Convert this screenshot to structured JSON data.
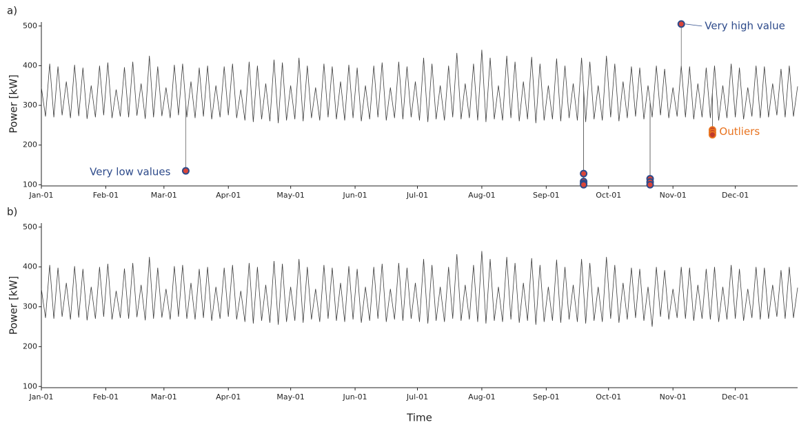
{
  "chart_data": [
    {
      "type": "line",
      "panel_label": "a)",
      "ylabel": "Power [kW]",
      "xlim": [
        0,
        364
      ],
      "ylim": [
        97,
        510
      ],
      "yticks": [
        100,
        200,
        300,
        400,
        500
      ],
      "xticks": [
        {
          "value": 0,
          "label": "Jan-01"
        },
        {
          "value": 31,
          "label": "Feb-01"
        },
        {
          "value": 59,
          "label": "Mar-01"
        },
        {
          "value": 90,
          "label": "Apr-01"
        },
        {
          "value": 120,
          "label": "May-01"
        },
        {
          "value": 151,
          "label": "Jun-01"
        },
        {
          "value": 181,
          "label": "Jul-01"
        },
        {
          "value": 212,
          "label": "Aug-01"
        },
        {
          "value": 243,
          "label": "Sep-01"
        },
        {
          "value": 273,
          "label": "Oct-01"
        },
        {
          "value": 304,
          "label": "Nov-01"
        },
        {
          "value": 334,
          "label": "Dec-01"
        }
      ],
      "x": [
        0,
        2,
        4,
        6,
        8,
        10,
        12,
        14,
        16,
        18,
        20,
        22,
        24,
        26,
        28,
        30,
        32,
        34,
        36,
        38,
        40,
        42,
        44,
        46,
        48,
        50,
        52,
        54,
        56,
        58,
        60,
        62,
        64,
        66,
        68,
        70,
        72,
        74,
        76,
        78,
        80,
        82,
        84,
        86,
        88,
        90,
        92,
        94,
        96,
        98,
        100,
        102,
        104,
        106,
        108,
        110,
        112,
        114,
        116,
        118,
        120,
        122,
        124,
        126,
        128,
        130,
        132,
        134,
        136,
        138,
        140,
        142,
        144,
        146,
        148,
        150,
        152,
        154,
        156,
        158,
        160,
        162,
        164,
        166,
        168,
        170,
        172,
        174,
        176,
        178,
        180,
        182,
        184,
        186,
        188,
        190,
        192,
        194,
        196,
        198,
        200,
        202,
        204,
        206,
        208,
        210,
        212,
        214,
        216,
        218,
        220,
        222,
        224,
        226,
        228,
        230,
        232,
        234,
        236,
        238,
        240,
        242,
        244,
        246,
        248,
        250,
        252,
        254,
        256,
        258,
        260,
        262,
        264,
        266,
        268,
        270,
        272,
        274,
        276,
        278,
        280,
        282,
        284,
        286,
        288,
        290,
        292,
        294,
        296,
        298,
        300,
        302,
        304,
        306,
        308,
        310,
        312,
        314,
        316,
        318,
        320,
        322,
        324,
        326,
        328,
        330,
        332,
        334,
        336,
        338,
        340,
        342,
        344,
        346,
        348,
        350,
        352,
        354,
        356,
        358,
        360,
        362,
        364
      ],
      "series": [
        {
          "color": "#3a3a3a",
          "values": [
            345,
            272,
            405,
            270,
            398,
            275,
            360,
            268,
            402,
            273,
            395,
            266,
            350,
            270,
            400,
            275,
            408,
            268,
            340,
            272,
            396,
            270,
            410,
            274,
            355,
            266,
            425,
            270,
            398,
            273,
            345,
            268,
            402,
            275,
            405,
            270,
            360,
            268,
            395,
            272,
            400,
            265,
            350,
            270,
            398,
            275,
            405,
            268,
            340,
            262,
            410,
            258,
            400,
            265,
            355,
            260,
            415,
            255,
            408,
            262,
            350,
            265,
            420,
            260,
            400,
            268,
            345,
            262,
            405,
            270,
            398,
            265,
            360,
            262,
            402,
            268,
            395,
            260,
            350,
            265,
            400,
            270,
            408,
            262,
            345,
            268,
            410,
            265,
            398,
            270,
            360,
            262,
            420,
            258,
            405,
            265,
            350,
            262,
            400,
            270,
            432,
            265,
            355,
            268,
            405,
            262,
            440,
            258,
            420,
            265,
            350,
            262,
            425,
            268,
            410,
            260,
            360,
            265,
            422,
            255,
            405,
            262,
            350,
            265,
            418,
            260,
            400,
            268,
            355,
            262,
            420,
            258,
            410,
            265,
            350,
            262,
            425,
            270,
            405,
            260,
            360,
            268,
            398,
            272,
            395,
            265,
            350,
            270,
            400,
            275,
            392,
            268,
            345,
            272,
            400,
            270,
            398,
            265,
            355,
            270,
            395,
            268,
            400,
            262,
            350,
            268,
            405,
            270,
            395,
            265,
            345,
            272,
            400,
            268,
            398,
            270,
            355,
            275,
            392,
            270,
            400,
            272,
            348
          ]
        }
      ],
      "highlights": [
        {
          "label": "Very low values",
          "color": "#2d4a8a",
          "fill": "#d9453a",
          "x": [
            69.5,
            261,
            261,
            261,
            261,
            293,
            293,
            293
          ],
          "values": [
            135,
            128,
            108,
            103,
            100,
            115,
            107,
            100
          ]
        },
        {
          "label": "Very high value",
          "color": "#2d4a8a",
          "fill": "#d9453a",
          "x": [
            308
          ],
          "values": [
            505
          ]
        },
        {
          "label": "Outliers",
          "color": "#e8731f",
          "fill": "#c0392b",
          "x": [
            323,
            323,
            323
          ],
          "values": [
            238,
            232,
            226
          ]
        }
      ]
    },
    {
      "type": "line",
      "panel_label": "b)",
      "ylabel": "Power [kW]",
      "xlabel": "Time",
      "xlim": [
        0,
        364
      ],
      "ylim": [
        97,
        510
      ],
      "yticks": [
        100,
        200,
        300,
        400,
        500
      ],
      "xticks": [
        {
          "value": 0,
          "label": "Jan-01"
        },
        {
          "value": 31,
          "label": "Feb-01"
        },
        {
          "value": 59,
          "label": "Mar-01"
        },
        {
          "value": 90,
          "label": "Apr-01"
        },
        {
          "value": 120,
          "label": "May-01"
        },
        {
          "value": 151,
          "label": "Jun-01"
        },
        {
          "value": 181,
          "label": "Jul-01"
        },
        {
          "value": 212,
          "label": "Aug-01"
        },
        {
          "value": 243,
          "label": "Sep-01"
        },
        {
          "value": 273,
          "label": "Oct-01"
        },
        {
          "value": 304,
          "label": "Nov-01"
        },
        {
          "value": 334,
          "label": "Dec-01"
        }
      ],
      "x": [
        0,
        2,
        4,
        6,
        8,
        10,
        12,
        14,
        16,
        18,
        20,
        22,
        24,
        26,
        28,
        30,
        32,
        34,
        36,
        38,
        40,
        42,
        44,
        46,
        48,
        50,
        52,
        54,
        56,
        58,
        60,
        62,
        64,
        66,
        68,
        70,
        72,
        74,
        76,
        78,
        80,
        82,
        84,
        86,
        88,
        90,
        92,
        94,
        96,
        98,
        100,
        102,
        104,
        106,
        108,
        110,
        112,
        114,
        116,
        118,
        120,
        122,
        124,
        126,
        128,
        130,
        132,
        134,
        136,
        138,
        140,
        142,
        144,
        146,
        148,
        150,
        152,
        154,
        156,
        158,
        160,
        162,
        164,
        166,
        168,
        170,
        172,
        174,
        176,
        178,
        180,
        182,
        184,
        186,
        188,
        190,
        192,
        194,
        196,
        198,
        200,
        202,
        204,
        206,
        208,
        210,
        212,
        214,
        216,
        218,
        220,
        222,
        224,
        226,
        228,
        230,
        232,
        234,
        236,
        238,
        240,
        242,
        244,
        246,
        248,
        250,
        252,
        254,
        256,
        258,
        260,
        262,
        264,
        266,
        268,
        270,
        272,
        274,
        276,
        278,
        280,
        282,
        284,
        286,
        288,
        290,
        292,
        294,
        296,
        298,
        300,
        302,
        304,
        306,
        308,
        310,
        312,
        314,
        316,
        318,
        320,
        322,
        324,
        326,
        328,
        330,
        332,
        334,
        336,
        338,
        340,
        342,
        344,
        346,
        348,
        350,
        352,
        354,
        356,
        358,
        360,
        362,
        364
      ],
      "series": [
        {
          "color": "#3a3a3a",
          "values": [
            345,
            272,
            405,
            270,
            398,
            275,
            360,
            268,
            402,
            273,
            395,
            266,
            350,
            270,
            400,
            275,
            408,
            268,
            340,
            272,
            396,
            270,
            410,
            274,
            355,
            266,
            425,
            270,
            398,
            273,
            345,
            268,
            402,
            275,
            405,
            270,
            360,
            268,
            395,
            272,
            400,
            265,
            350,
            270,
            398,
            275,
            405,
            268,
            340,
            262,
            410,
            258,
            400,
            265,
            355,
            260,
            415,
            255,
            408,
            262,
            350,
            265,
            420,
            260,
            400,
            268,
            345,
            262,
            405,
            270,
            398,
            265,
            360,
            262,
            402,
            268,
            395,
            260,
            350,
            265,
            400,
            270,
            408,
            262,
            345,
            268,
            410,
            265,
            398,
            270,
            360,
            262,
            420,
            258,
            405,
            265,
            350,
            262,
            400,
            270,
            432,
            265,
            355,
            268,
            405,
            262,
            440,
            258,
            420,
            265,
            350,
            262,
            425,
            268,
            410,
            260,
            360,
            265,
            422,
            255,
            405,
            262,
            350,
            265,
            418,
            260,
            400,
            268,
            355,
            262,
            420,
            258,
            410,
            265,
            350,
            262,
            425,
            270,
            405,
            260,
            360,
            268,
            398,
            272,
            395,
            265,
            350,
            250,
            400,
            275,
            392,
            268,
            345,
            272,
            400,
            270,
            398,
            265,
            355,
            270,
            395,
            268,
            400,
            262,
            350,
            268,
            405,
            270,
            395,
            265,
            345,
            272,
            400,
            268,
            398,
            270,
            355,
            275,
            392,
            270,
            400,
            272,
            348
          ]
        }
      ]
    }
  ]
}
